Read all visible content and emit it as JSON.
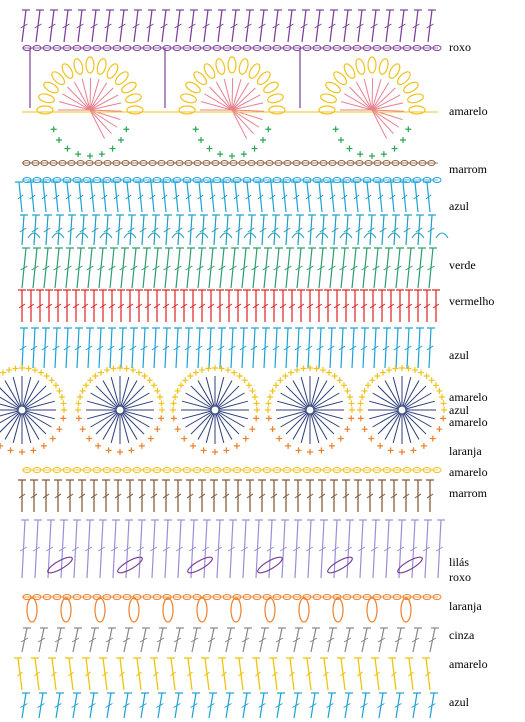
{
  "labels": [
    "roxo",
    "amarelo",
    "marrom",
    "azul",
    "verde",
    "vermelho",
    "azul",
    "amarelo",
    "azul",
    "amarelo",
    "laranja",
    "amarelo",
    "marrom",
    "lilás",
    "roxo",
    "laranja",
    "cinza",
    "amarelo",
    "azul"
  ]
}
